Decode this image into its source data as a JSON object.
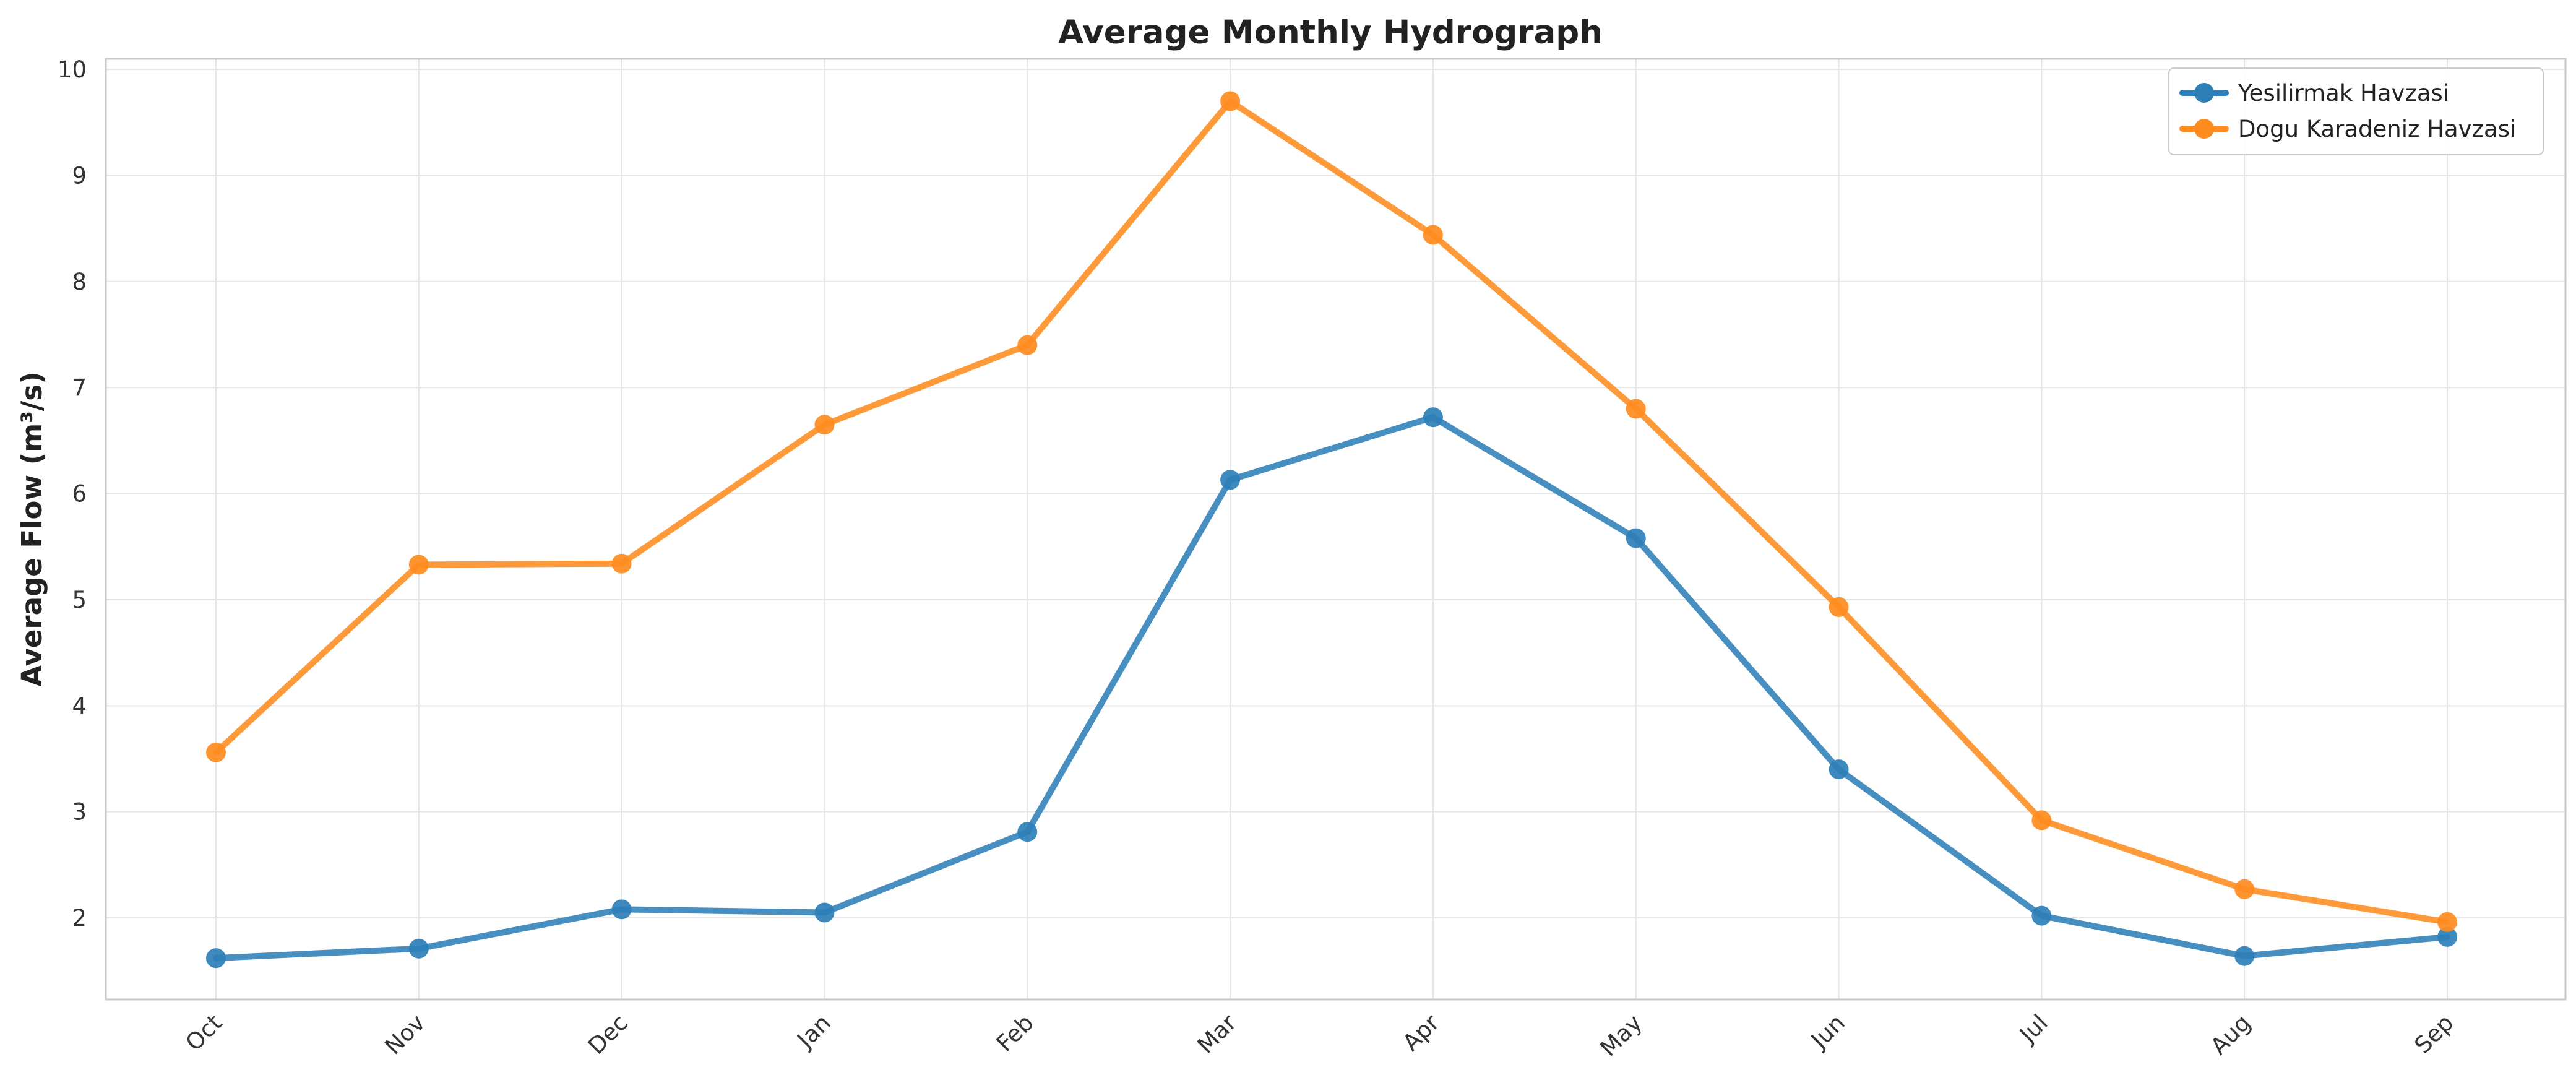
{
  "chart_data": {
    "type": "line",
    "title": "Average Monthly Hydrograph",
    "xlabel": "",
    "ylabel": "Average Flow (m³/s)",
    "categories": [
      "Oct",
      "Nov",
      "Dec",
      "Jan",
      "Feb",
      "Mar",
      "Apr",
      "May",
      "Jun",
      "Jul",
      "Aug",
      "Sep"
    ],
    "yticks": [
      2,
      3,
      4,
      5,
      6,
      7,
      8,
      9,
      10
    ],
    "ylim": [
      1.23,
      10.1
    ],
    "grid": true,
    "legend_position": "top-right",
    "series": [
      {
        "name": "Yesilirmak Havzasi",
        "color": "#2e7fb8",
        "values": [
          1.62,
          1.71,
          2.08,
          2.05,
          2.81,
          6.13,
          6.72,
          5.58,
          3.4,
          2.02,
          1.64,
          1.82
        ]
      },
      {
        "name": "Dogu Karadeniz Havzasi",
        "color": "#ff8c1f",
        "values": [
          3.56,
          5.33,
          5.34,
          6.65,
          7.4,
          9.7,
          8.44,
          6.8,
          4.93,
          2.92,
          2.27,
          1.96
        ]
      }
    ]
  }
}
